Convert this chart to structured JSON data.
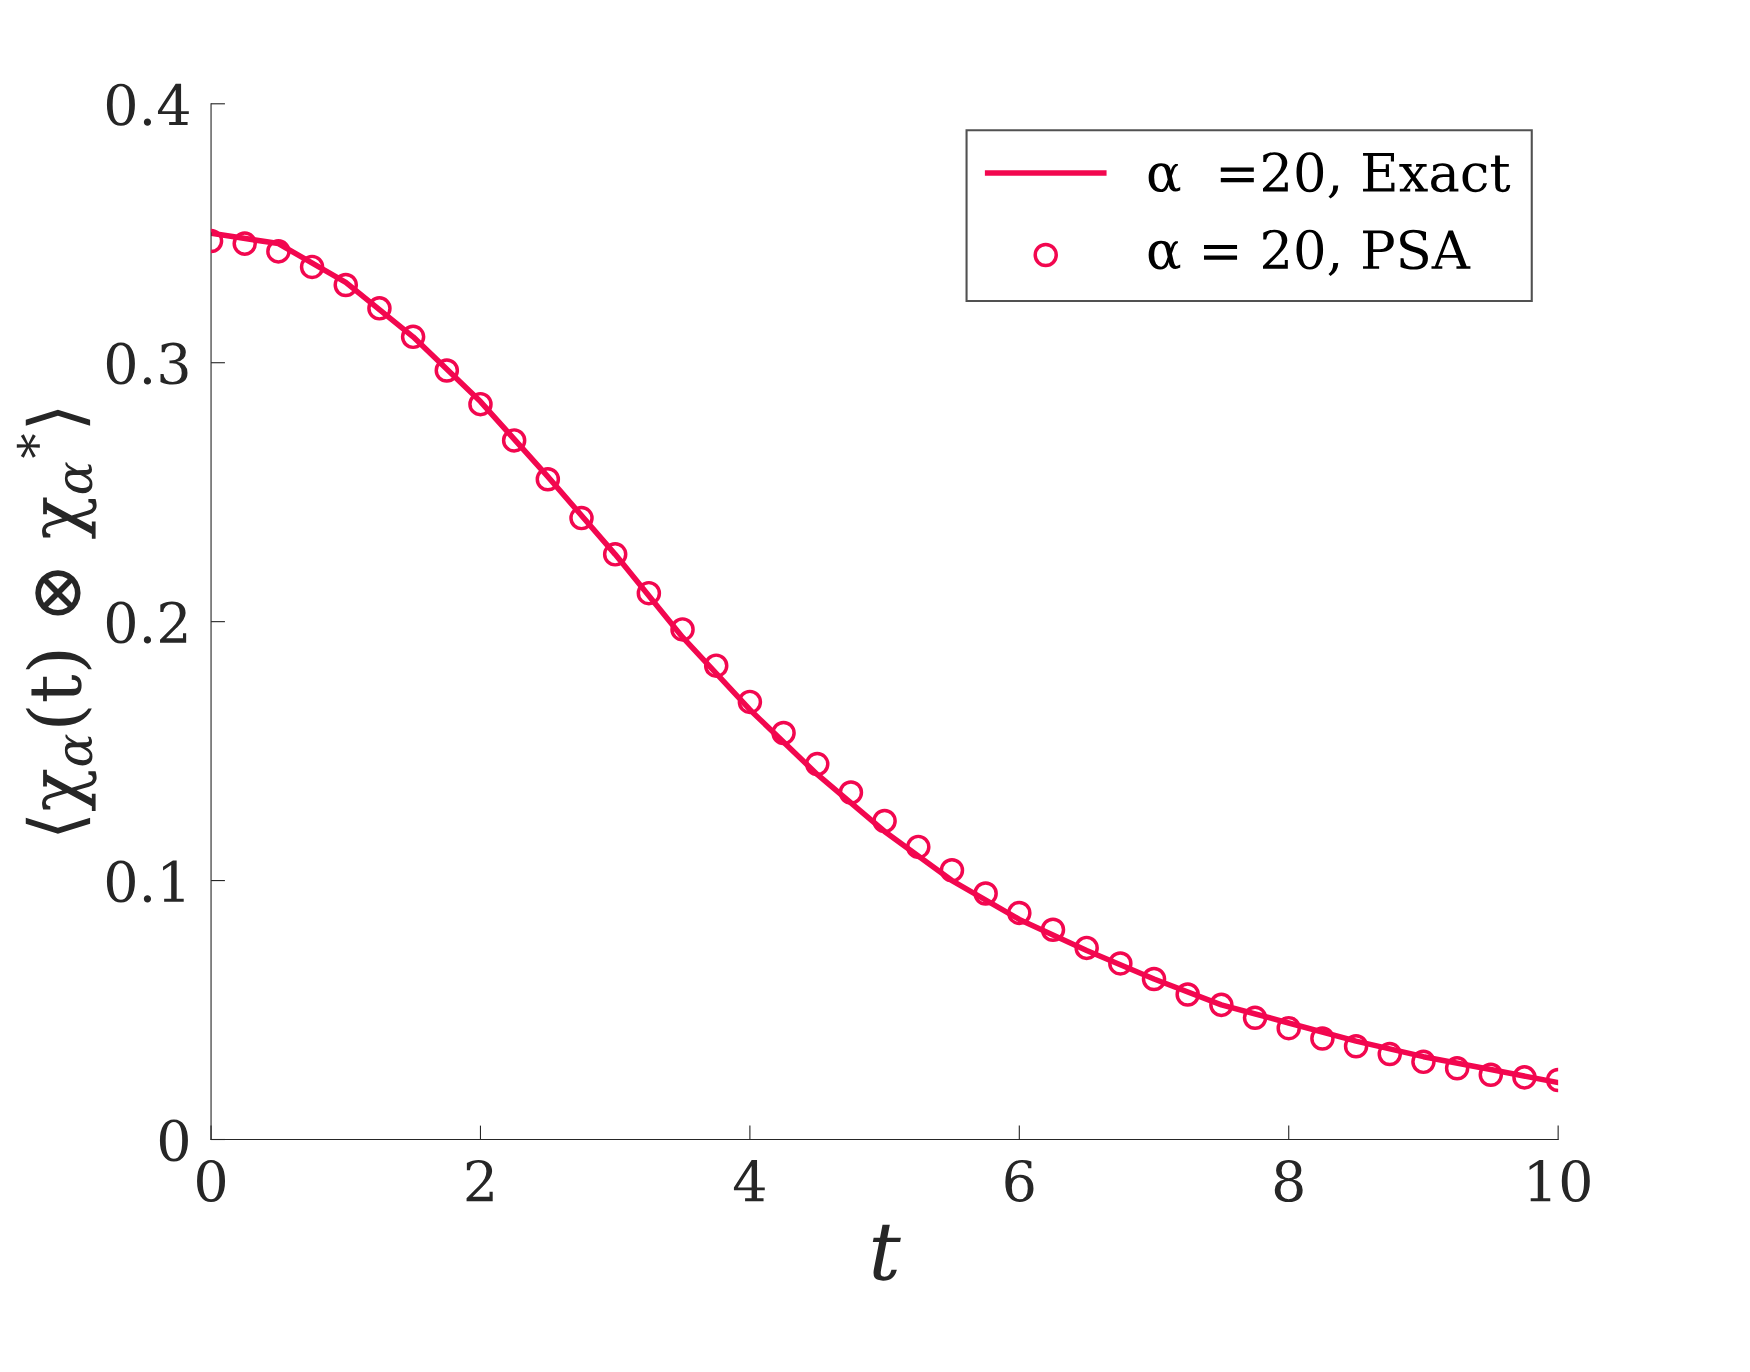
{
  "chart_data": {
    "type": "line",
    "xlabel": "t",
    "ylabel": "⟨χ$_{α}$(t) ⊗ χ$_{α}$$^{*}$⟩",
    "xlim": [
      0,
      10
    ],
    "ylim": [
      0,
      0.4
    ],
    "xticks": [
      0,
      2,
      4,
      6,
      8,
      10
    ],
    "yticks": [
      0,
      0.1,
      0.2,
      0.3,
      0.4
    ],
    "grid": false,
    "legend": "top right",
    "series": [
      {
        "name": "α  =20, Exact",
        "color": "#f2074f",
        "line_style": "solid",
        "marker": "none",
        "x": [
          0,
          0.5,
          1,
          1.5,
          2,
          2.5,
          3,
          3.5,
          4,
          4.5,
          5,
          5.5,
          6,
          6.5,
          7,
          7.5,
          8,
          8.5,
          9,
          9.5,
          10
        ],
        "values": [
          0.35,
          0.346,
          0.331,
          0.31,
          0.285,
          0.256,
          0.226,
          0.194,
          0.166,
          0.141,
          0.119,
          0.1,
          0.085,
          0.073,
          0.062,
          0.052,
          0.045,
          0.038,
          0.032,
          0.027,
          0.022
        ]
      },
      {
        "name": "α = 20, PSA",
        "type": "scatter",
        "color": "#f2074f",
        "marker": "circle",
        "x": [
          0,
          0.25,
          0.5,
          0.75,
          1,
          1.25,
          1.5,
          1.75,
          2,
          2.25,
          2.5,
          2.75,
          3,
          3.25,
          3.5,
          3.75,
          4,
          4.25,
          4.5,
          4.75,
          5,
          5.25,
          5.5,
          5.75,
          6,
          6.25,
          6.5,
          6.75,
          7,
          7.25,
          7.5,
          7.75,
          8,
          8.25,
          8.5,
          8.75,
          9,
          9.25,
          9.5,
          9.75,
          10
        ],
        "values": [
          0.347,
          0.346,
          0.343,
          0.337,
          0.33,
          0.321,
          0.31,
          0.297,
          0.284,
          0.27,
          0.255,
          0.24,
          0.226,
          0.211,
          0.197,
          0.183,
          0.169,
          0.157,
          0.145,
          0.134,
          0.123,
          0.113,
          0.104,
          0.095,
          0.0875,
          0.081,
          0.074,
          0.068,
          0.062,
          0.056,
          0.052,
          0.047,
          0.043,
          0.039,
          0.036,
          0.033,
          0.03,
          0.0275,
          0.025,
          0.024,
          0.023
        ]
      }
    ]
  }
}
